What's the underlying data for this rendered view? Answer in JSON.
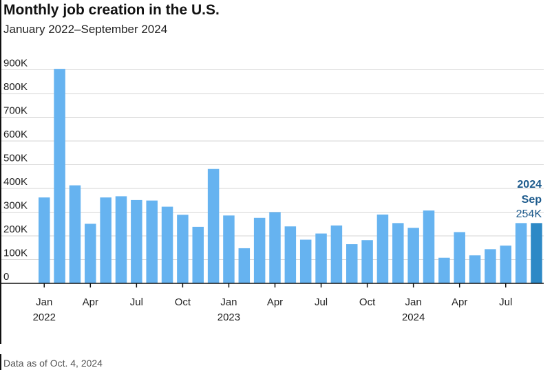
{
  "header": {
    "title": "Monthly job creation in the U.S.",
    "subtitle": "January 2022–September 2024"
  },
  "footer": {
    "note": "Data as of Oct. 4, 2024"
  },
  "colors": {
    "bar": "#66b3f0",
    "highlight": "#2d89c6",
    "grid": "#d4d4d4",
    "axis": "#111111",
    "callout": "#1c5a8c"
  },
  "chart_data": {
    "type": "bar",
    "title": "Monthly job creation in the U.S.",
    "subtitle": "January 2022–September 2024",
    "xlabel": "",
    "ylabel": "",
    "ylim": [
      0,
      900000
    ],
    "yticks": [
      0,
      100000,
      200000,
      300000,
      400000,
      500000,
      600000,
      700000,
      800000,
      900000
    ],
    "ytick_labels": [
      "0",
      "100K",
      "200K",
      "300K",
      "400K",
      "500K",
      "600K",
      "700K",
      "800K",
      "900K"
    ],
    "grid": true,
    "categories": [
      "2022-01",
      "2022-02",
      "2022-03",
      "2022-04",
      "2022-05",
      "2022-06",
      "2022-07",
      "2022-08",
      "2022-09",
      "2022-10",
      "2022-11",
      "2022-12",
      "2023-01",
      "2023-02",
      "2023-03",
      "2023-04",
      "2023-05",
      "2023-06",
      "2023-07",
      "2023-08",
      "2023-09",
      "2023-10",
      "2023-11",
      "2023-12",
      "2024-01",
      "2024-02",
      "2024-03",
      "2024-04",
      "2024-05",
      "2024-06",
      "2024-07",
      "2024-08",
      "2024-09"
    ],
    "values": [
      362000,
      904000,
      413000,
      251000,
      362000,
      367000,
      351000,
      349000,
      323000,
      289000,
      238000,
      482000,
      286000,
      148000,
      276000,
      300000,
      240000,
      184000,
      210000,
      244000,
      165000,
      182000,
      290000,
      254000,
      234000,
      307000,
      108000,
      216000,
      118000,
      144000,
      159000,
      254000,
      254000
    ],
    "xtick_labels": [
      {
        "index": 0,
        "month": "Jan",
        "year": "2022"
      },
      {
        "index": 3,
        "month": "Apr",
        "year": ""
      },
      {
        "index": 6,
        "month": "Jul",
        "year": ""
      },
      {
        "index": 9,
        "month": "Oct",
        "year": ""
      },
      {
        "index": 12,
        "month": "Jan",
        "year": "2023"
      },
      {
        "index": 15,
        "month": "Apr",
        "year": ""
      },
      {
        "index": 18,
        "month": "Jul",
        "year": ""
      },
      {
        "index": 21,
        "month": "Oct",
        "year": ""
      },
      {
        "index": 24,
        "month": "Jan",
        "year": "2024"
      },
      {
        "index": 27,
        "month": "Apr",
        "year": ""
      },
      {
        "index": 30,
        "month": "Jul",
        "year": ""
      }
    ],
    "highlight_index": 32,
    "callout": {
      "year": "2024",
      "month": "Sep",
      "value": "254K"
    }
  }
}
